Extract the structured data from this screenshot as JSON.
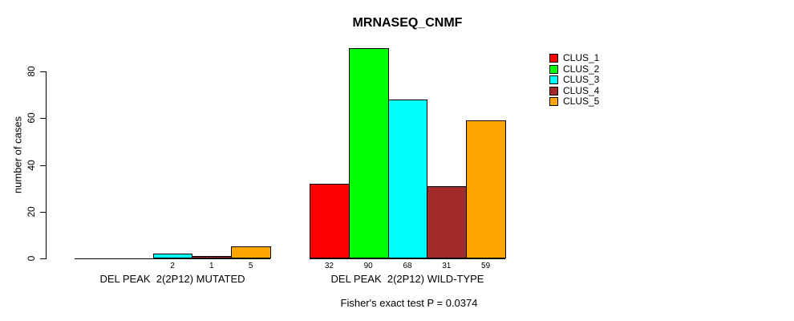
{
  "chart_data": {
    "type": "bar",
    "title": "MRNASEQ_CNMF",
    "ylabel": "number of cases",
    "ylim": [
      0,
      90
    ],
    "yticks": [
      0,
      20,
      40,
      60,
      80
    ],
    "grid": false,
    "legend_position": "top-right",
    "categories": [
      "DEL PEAK  2(2P12) MUTATED",
      "DEL PEAK  2(2P12) WILD-TYPE"
    ],
    "series": [
      {
        "name": "CLUS_1",
        "color": "#FF0000",
        "values": [
          0,
          32
        ]
      },
      {
        "name": "CLUS_2",
        "color": "#00FF00",
        "values": [
          0,
          90
        ]
      },
      {
        "name": "CLUS_3",
        "color": "#00FFFF",
        "values": [
          2,
          68
        ]
      },
      {
        "name": "CLUS_4",
        "color": "#A52A2A",
        "values": [
          1,
          31
        ]
      },
      {
        "name": "CLUS_5",
        "color": "#FFA500",
        "values": [
          5,
          59
        ]
      }
    ],
    "bar_value_labels": [
      [
        "",
        "",
        "2",
        "1",
        "5"
      ],
      [
        "32",
        "90",
        "68",
        "31",
        "59"
      ]
    ],
    "annotation": "Fisher's exact test P = 0.0374"
  }
}
